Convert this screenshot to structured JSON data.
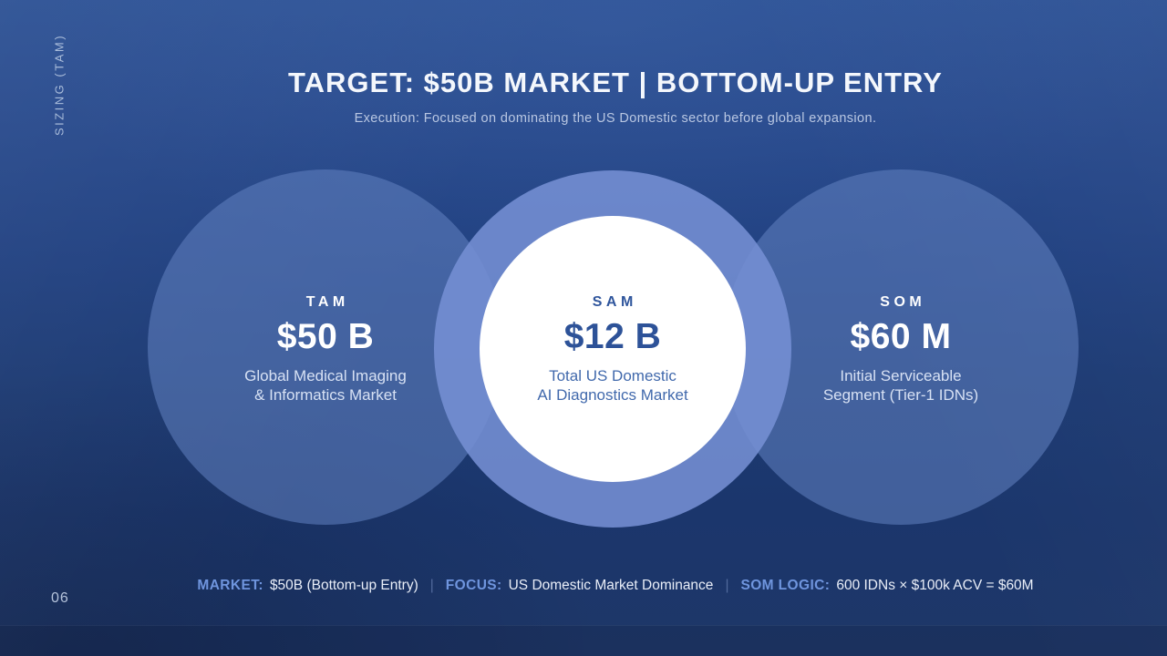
{
  "slide": {
    "side_label": "SIZING (TAM)",
    "title": "TARGET: $50B MARKET | BOTTOM-UP ENTRY",
    "subtitle": "Execution: Focused on dominating the US Domestic sector before global expansion.",
    "page_number": "06"
  },
  "segments": [
    {
      "id": "tam",
      "label": "TAM",
      "value": "$50 B",
      "desc_line1": "Global Medical Imaging",
      "desc_line2": "& Informatics Market"
    },
    {
      "id": "sam",
      "label": "SAM",
      "value": "$12 B",
      "desc_line1": "Total US Domestic",
      "desc_line2": "AI Diagnostics Market"
    },
    {
      "id": "som",
      "label": "SOM",
      "value": "$60 M",
      "desc_line1": "Initial Serviceable",
      "desc_line2": "Segment (Tier-1 IDNs)"
    }
  ],
  "footer": {
    "separator": "|",
    "items": [
      {
        "label": "MARKET:",
        "value": "$50B (Bottom-up Entry)"
      },
      {
        "label": "FOCUS:",
        "value": "US Domestic Market Dominance"
      },
      {
        "label": "SOM LOGIC:",
        "value": "600 IDNs × $100k ACV = $60M"
      }
    ]
  },
  "colors": {
    "background_top": "#2b5094",
    "background_bottom": "#1d3567",
    "outer_circle_blue": "#44639f",
    "sam_ring_blue": "#6d87c8",
    "sam_inner_circle": "#ffffff",
    "sam_text_blue": "#2d5298",
    "footer_label_blue": "#6f95de",
    "light_text": "#e9eef8"
  }
}
